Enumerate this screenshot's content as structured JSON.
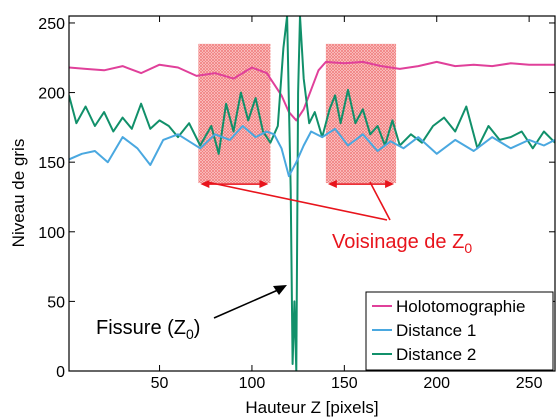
{
  "chart_data": {
    "type": "line",
    "xlabel": "Hauteur Z [pixels]",
    "ylabel": "Niveau de gris",
    "xlim": [
      1,
      264
    ],
    "ylim": [
      0,
      255
    ],
    "x_ticks": [
      50,
      100,
      150,
      200,
      250
    ],
    "y_ticks": [
      0,
      50,
      100,
      150,
      200,
      250
    ],
    "legend_position": "bottom-right",
    "colors": {
      "holotomographie": "#e0409a",
      "distance1": "#4aa8e0",
      "distance2": "#11906a",
      "annotation": "#e8141c",
      "hatch": "#f08080"
    },
    "shaded_regions": [
      {
        "x0": 71,
        "x1": 110,
        "y0": 135,
        "y1": 235
      },
      {
        "x0": 140,
        "x1": 178,
        "y0": 135,
        "y1": 235
      }
    ],
    "series": [
      {
        "name": "Holotomographie",
        "key": "holotomographie",
        "points": [
          [
            1,
            218
          ],
          [
            10,
            217
          ],
          [
            20,
            216
          ],
          [
            30,
            219
          ],
          [
            40,
            214
          ],
          [
            50,
            220
          ],
          [
            60,
            218
          ],
          [
            70,
            212
          ],
          [
            80,
            214
          ],
          [
            90,
            210
          ],
          [
            100,
            218
          ],
          [
            108,
            214
          ],
          [
            112,
            206
          ],
          [
            116,
            198
          ],
          [
            120,
            186
          ],
          [
            124,
            180
          ],
          [
            128,
            188
          ],
          [
            132,
            202
          ],
          [
            136,
            216
          ],
          [
            140,
            222
          ],
          [
            150,
            221
          ],
          [
            160,
            222
          ],
          [
            170,
            219
          ],
          [
            180,
            217
          ],
          [
            190,
            219
          ],
          [
            200,
            222
          ],
          [
            210,
            219
          ],
          [
            220,
            220
          ],
          [
            230,
            219
          ],
          [
            240,
            221
          ],
          [
            250,
            220
          ],
          [
            264,
            220
          ]
        ]
      },
      {
        "name": "Distance 1",
        "key": "distance1",
        "points": [
          [
            1,
            152
          ],
          [
            8,
            156
          ],
          [
            15,
            158
          ],
          [
            22,
            150
          ],
          [
            30,
            168
          ],
          [
            38,
            160
          ],
          [
            45,
            148
          ],
          [
            52,
            166
          ],
          [
            60,
            170
          ],
          [
            66,
            165
          ],
          [
            72,
            160
          ],
          [
            80,
            170
          ],
          [
            88,
            166
          ],
          [
            95,
            176
          ],
          [
            102,
            168
          ],
          [
            108,
            172
          ],
          [
            112,
            170
          ],
          [
            116,
            160
          ],
          [
            120,
            140
          ],
          [
            124,
            150
          ],
          [
            128,
            162
          ],
          [
            132,
            172
          ],
          [
            138,
            168
          ],
          [
            145,
            174
          ],
          [
            152,
            162
          ],
          [
            160,
            170
          ],
          [
            168,
            158
          ],
          [
            175,
            165
          ],
          [
            182,
            160
          ],
          [
            190,
            168
          ],
          [
            200,
            156
          ],
          [
            210,
            166
          ],
          [
            220,
            158
          ],
          [
            230,
            168
          ],
          [
            240,
            160
          ],
          [
            250,
            166
          ],
          [
            258,
            162
          ],
          [
            264,
            166
          ]
        ]
      },
      {
        "name": "Distance 2",
        "key": "distance2",
        "points": [
          [
            1,
            198
          ],
          [
            5,
            178
          ],
          [
            10,
            190
          ],
          [
            15,
            176
          ],
          [
            20,
            186
          ],
          [
            25,
            172
          ],
          [
            30,
            182
          ],
          [
            35,
            174
          ],
          [
            40,
            192
          ],
          [
            45,
            174
          ],
          [
            50,
            180
          ],
          [
            55,
            176
          ],
          [
            60,
            168
          ],
          [
            66,
            178
          ],
          [
            72,
            162
          ],
          [
            78,
            176
          ],
          [
            82,
            156
          ],
          [
            86,
            192
          ],
          [
            90,
            172
          ],
          [
            94,
            200
          ],
          [
            98,
            180
          ],
          [
            102,
            196
          ],
          [
            106,
            172
          ],
          [
            110,
            164
          ],
          [
            114,
            176
          ],
          [
            117,
            232
          ],
          [
            119,
            255
          ],
          [
            121,
            130
          ],
          [
            122,
            5
          ],
          [
            123,
            50
          ],
          [
            124,
            0
          ],
          [
            125,
            200
          ],
          [
            126,
            255
          ],
          [
            128,
            210
          ],
          [
            131,
            178
          ],
          [
            134,
            186
          ],
          [
            138,
            168
          ],
          [
            142,
            188
          ],
          [
            145,
            198
          ],
          [
            148,
            178
          ],
          [
            152,
            202
          ],
          [
            156,
            178
          ],
          [
            160,
            188
          ],
          [
            164,
            170
          ],
          [
            168,
            176
          ],
          [
            172,
            162
          ],
          [
            176,
            180
          ],
          [
            180,
            162
          ],
          [
            186,
            170
          ],
          [
            192,
            164
          ],
          [
            198,
            176
          ],
          [
            204,
            182
          ],
          [
            210,
            172
          ],
          [
            216,
            190
          ],
          [
            222,
            160
          ],
          [
            228,
            176
          ],
          [
            234,
            166
          ],
          [
            240,
            168
          ],
          [
            246,
            172
          ],
          [
            252,
            160
          ],
          [
            258,
            172
          ],
          [
            264,
            164
          ]
        ]
      }
    ],
    "annotations": {
      "voisinage_main": "Voisinage de Z",
      "voisinage_sub": "0",
      "fissure_main": "Fissure (Z",
      "fissure_sub": "0",
      "fissure_close": ")"
    }
  }
}
